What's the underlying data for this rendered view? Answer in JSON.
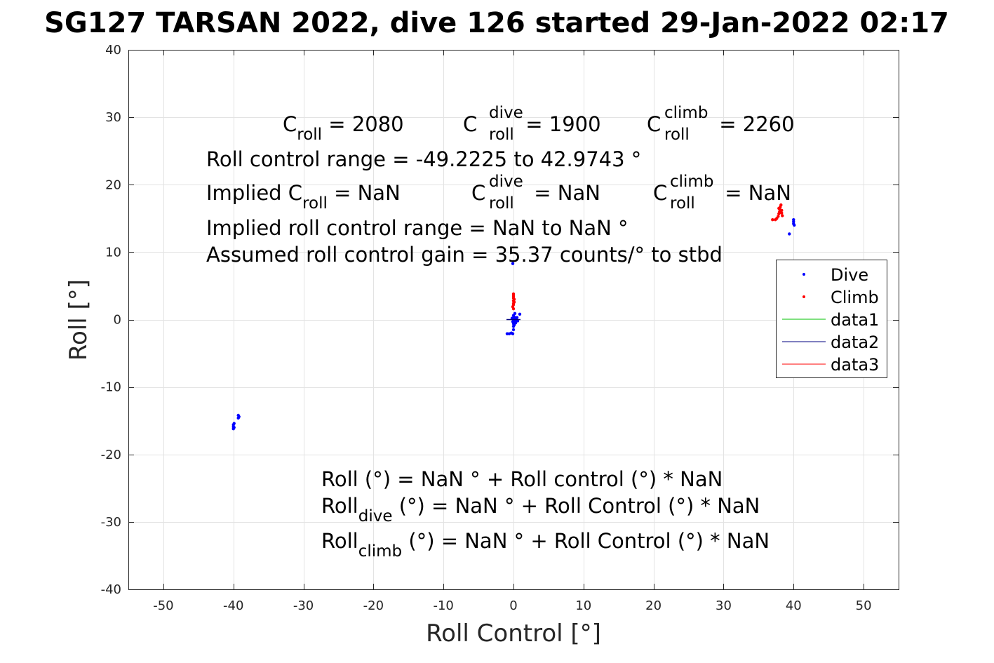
{
  "chart_data": {
    "type": "scatter",
    "title": "SG127 TARSAN 2022, dive 126 started 29-Jan-2022 02:17",
    "xlabel": "Roll Control [°]",
    "ylabel": "Roll [°]",
    "xlim": [
      -55,
      55
    ],
    "ylim": [
      -40,
      40
    ],
    "xticks": [
      -50,
      -40,
      -30,
      -20,
      -10,
      0,
      10,
      20,
      30,
      40,
      50
    ],
    "yticks": [
      -40,
      -30,
      -20,
      -10,
      0,
      10,
      20,
      30,
      40
    ],
    "xtick_labels": [
      "-50",
      "-40",
      "-30",
      "-20",
      "-10",
      "0",
      "10",
      "20",
      "30",
      "40",
      "50"
    ],
    "ytick_labels": [
      "-40",
      "-30",
      "-20",
      "-10",
      "0",
      "10",
      "20",
      "30",
      "40"
    ],
    "grid": true,
    "legend_position": "right",
    "series": [
      {
        "name": "Dive",
        "color": "#0000ff",
        "marker": "dot",
        "points": [
          [
            -40.0,
            -16.2
          ],
          [
            -40.0,
            -15.9
          ],
          [
            -40.0,
            -15.6
          ],
          [
            -39.9,
            -16.0
          ],
          [
            -39.9,
            -15.4
          ],
          [
            -39.3,
            -14.6
          ],
          [
            -39.3,
            -14.2
          ],
          [
            -39.2,
            -14.4
          ],
          [
            -0.9,
            -2.1
          ],
          [
            -0.6,
            -2.1
          ],
          [
            -0.3,
            -2.0
          ],
          [
            -0.1,
            -2.1
          ],
          [
            0.0,
            -1.5
          ],
          [
            0.0,
            -1.0
          ],
          [
            0.1,
            -0.8
          ],
          [
            0.0,
            -0.6
          ],
          [
            0.2,
            -0.4
          ],
          [
            -0.1,
            -0.3
          ],
          [
            0.3,
            -0.2
          ],
          [
            0.0,
            0.0
          ],
          [
            0.2,
            0.1
          ],
          [
            -0.2,
            0.2
          ],
          [
            0.4,
            0.2
          ],
          [
            0.1,
            0.4
          ],
          [
            0.5,
            0.3
          ],
          [
            0.3,
            -0.5
          ],
          [
            0.6,
            -0.2
          ],
          [
            0.0,
            0.6
          ],
          [
            0.2,
            0.9
          ],
          [
            0.9,
            0.8
          ],
          [
            -0.1,
            8.3
          ],
          [
            40.0,
            14.8
          ],
          [
            40.0,
            14.5
          ],
          [
            40.0,
            14.2
          ],
          [
            40.1,
            14.0
          ],
          [
            39.4,
            12.7
          ]
        ]
      },
      {
        "name": "Climb",
        "color": "#ff0000",
        "marker": "dot",
        "points": [
          [
            0.0,
            3.8
          ],
          [
            0.0,
            3.5
          ],
          [
            0.0,
            3.2
          ],
          [
            0.1,
            3.0
          ],
          [
            0.0,
            2.8
          ],
          [
            0.1,
            2.6
          ],
          [
            0.0,
            2.4
          ],
          [
            0.0,
            2.2
          ],
          [
            -0.1,
            1.9
          ],
          [
            0.0,
            1.6
          ],
          [
            37.0,
            14.8
          ],
          [
            37.4,
            14.8
          ],
          [
            37.6,
            15.0
          ],
          [
            37.8,
            15.3
          ],
          [
            37.9,
            15.7
          ],
          [
            38.0,
            16.0
          ],
          [
            38.0,
            16.4
          ],
          [
            38.1,
            16.7
          ],
          [
            38.2,
            17.0
          ],
          [
            38.3,
            16.2
          ],
          [
            38.4,
            15.4
          ],
          [
            38.1,
            15.9
          ],
          [
            37.9,
            16.5
          ],
          [
            38.3,
            15.8
          ]
        ]
      },
      {
        "name": "data1",
        "color": "#00c000",
        "marker": "line",
        "points": []
      },
      {
        "name": "data2",
        "color": "#000080",
        "marker": "line",
        "points": [
          [
            -1.0,
            0.0
          ],
          [
            1.0,
            0.0
          ]
        ]
      },
      {
        "name": "data3",
        "color": "#ff0000",
        "marker": "line",
        "points": []
      }
    ],
    "annotations": {
      "c_roll": "2080",
      "c_roll_dive": "1900",
      "c_roll_climb": "2260",
      "roll_range_text": "Roll control range = -49.2225 to 42.9743 °",
      "implied_c_roll": "NaN",
      "implied_c_roll_dive": "NaN",
      "implied_c_roll_climb": "NaN",
      "implied_range_text": "Implied roll control range = NaN to NaN °",
      "gain_text": "Assumed roll control gain = 35.37 counts/° to stbd",
      "fit_all": "Roll (°) = NaN ° + Roll control (°) * NaN",
      "fit_dive_tail": " (°) = NaN ° + Roll Control (°) * NaN",
      "fit_climb_tail": " (°) = NaN ° + Roll Control (°) * NaN"
    },
    "labels": {
      "C": "C",
      "roll": "roll",
      "dive": "dive",
      "climb": "climb",
      "Roll": "Roll",
      "implied": "Implied C",
      "eq_sp": " = ",
      "eq_nan_sp": " =  "
    }
  }
}
